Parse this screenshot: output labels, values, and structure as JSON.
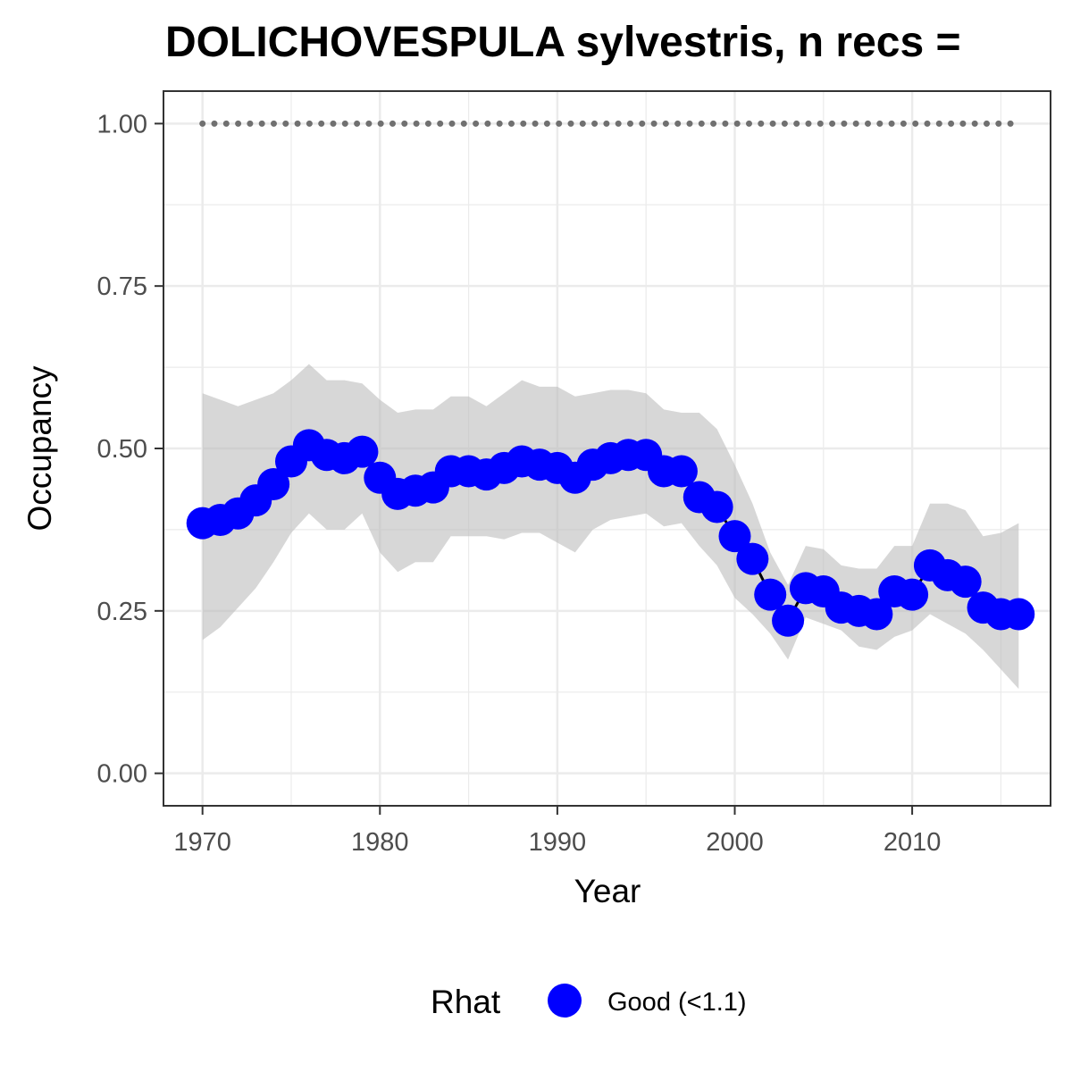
{
  "chart_data": {
    "type": "line",
    "title": "DOLICHOVESPULA sylvestris, n recs =",
    "xlabel": "Year",
    "ylabel": "Occupancy",
    "xlim": [
      1967.8,
      2017.8
    ],
    "ylim": [
      -0.05,
      1.05
    ],
    "x_ticks": [
      1970,
      1980,
      1990,
      2000,
      2010
    ],
    "y_ticks": [
      0.0,
      0.25,
      0.5,
      0.75,
      1.0
    ],
    "y_tick_labels": [
      "0.00",
      "0.25",
      "0.50",
      "0.75",
      "1.00"
    ],
    "grid": true,
    "legend": {
      "position": "bottom",
      "title": "Rhat",
      "entries": [
        {
          "label": "Good (<1.1)",
          "color": "#0000ff"
        }
      ]
    },
    "colors": {
      "points": "#0000ff",
      "ribbon": "#bdbdbd",
      "reference_line": "#707070",
      "grid": "#ebebeb",
      "panel_border": "#333333"
    },
    "x": [
      1970,
      1971,
      1972,
      1973,
      1974,
      1975,
      1976,
      1977,
      1978,
      1979,
      1980,
      1981,
      1982,
      1983,
      1984,
      1985,
      1986,
      1987,
      1988,
      1989,
      1990,
      1991,
      1992,
      1993,
      1994,
      1995,
      1996,
      1997,
      1998,
      1999,
      2000,
      2001,
      2002,
      2003,
      2004,
      2005,
      2006,
      2007,
      2008,
      2009,
      2010,
      2011,
      2012,
      2013,
      2014,
      2015,
      2016
    ],
    "series": [
      {
        "type": "points",
        "values": [
          0.385,
          0.39,
          0.4,
          0.42,
          0.445,
          0.48,
          0.505,
          0.49,
          0.485,
          0.495,
          0.455,
          0.43,
          0.435,
          0.44,
          0.465,
          0.465,
          0.46,
          0.47,
          0.48,
          0.475,
          0.47,
          0.455,
          0.475,
          0.485,
          0.49,
          0.49,
          0.465,
          0.465,
          0.425,
          0.41,
          0.365,
          0.33,
          0.275,
          0.235,
          0.285,
          0.28,
          0.255,
          0.25,
          0.245,
          0.28,
          0.275,
          0.32,
          0.305,
          0.295,
          0.255,
          0.245,
          0.245
        ]
      },
      {
        "type": "ribbon",
        "lower": [
          0.205,
          0.225,
          0.255,
          0.285,
          0.325,
          0.37,
          0.4,
          0.375,
          0.375,
          0.4,
          0.34,
          0.31,
          0.325,
          0.325,
          0.365,
          0.365,
          0.365,
          0.36,
          0.37,
          0.37,
          0.355,
          0.34,
          0.375,
          0.39,
          0.395,
          0.4,
          0.38,
          0.385,
          0.35,
          0.32,
          0.27,
          0.245,
          0.215,
          0.175,
          0.24,
          0.23,
          0.22,
          0.195,
          0.19,
          0.21,
          0.22,
          0.245,
          0.23,
          0.215,
          0.19,
          0.16,
          0.13
        ],
        "upper": [
          0.585,
          0.575,
          0.565,
          0.575,
          0.585,
          0.605,
          0.63,
          0.605,
          0.605,
          0.6,
          0.575,
          0.555,
          0.56,
          0.56,
          0.58,
          0.58,
          0.565,
          0.585,
          0.605,
          0.595,
          0.595,
          0.58,
          0.585,
          0.59,
          0.59,
          0.585,
          0.56,
          0.555,
          0.555,
          0.53,
          0.475,
          0.415,
          0.34,
          0.29,
          0.35,
          0.345,
          0.32,
          0.315,
          0.315,
          0.35,
          0.35,
          0.415,
          0.415,
          0.405,
          0.365,
          0.37,
          0.385
        ]
      },
      {
        "type": "reference_line",
        "value": 1.0,
        "style": "dotted"
      }
    ]
  }
}
